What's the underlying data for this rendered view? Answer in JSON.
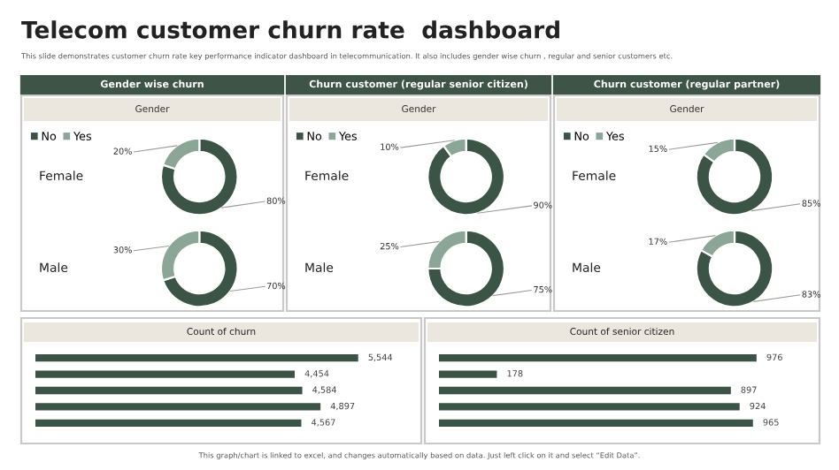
{
  "chart_data": [
    {
      "type": "donut",
      "title": "Gender wise churn",
      "subtitle": "Gender",
      "ylabel": "Female",
      "categories": [
        "No",
        "Yes"
      ],
      "values": [
        80,
        20
      ],
      "colors": [
        "#3b5446",
        "#8ba596"
      ],
      "value_labels": [
        "80%",
        "20%"
      ],
      "legend": "top left",
      "annotations": [
        "Telecom customer churn rate  dashboard",
        "This slide demonstrates customer churn rate key performance indicator dashboard in telecommunication. It also includes gender wise churn , regular and senior customers etc."
      ]
    },
    {
      "type": "donut",
      "title": "Churn customer (regular senior citizen)",
      "subtitle": "Gender",
      "ylabel": "Female",
      "categories": [
        "No",
        "Yes"
      ],
      "values": [
        90,
        10
      ],
      "colors": [
        "#3b5446",
        "#8ba596"
      ],
      "value_labels": [
        "90%",
        "10%"
      ],
      "legend": "top left"
    },
    {
      "type": "donut",
      "title": "Churn customer (regular partner)",
      "subtitle": "Gender",
      "ylabel": "Female",
      "categories": [
        "No",
        "Yes"
      ],
      "values": [
        85,
        15
      ],
      "colors": [
        "#3b5446",
        "#8ba596"
      ],
      "value_labels": [
        "85%",
        "15%"
      ],
      "legend": "top left"
    },
    {
      "type": "donut",
      "ylabel": "Male",
      "categories": [
        null,
        null
      ],
      "values": [
        70,
        30
      ],
      "colors": [
        "#3b5446",
        "#8ba596"
      ],
      "value_labels": [
        "70%",
        "30%"
      ]
    },
    {
      "type": "donut",
      "ylabel": "Male",
      "categories": [
        null,
        null
      ],
      "values": [
        75,
        25
      ],
      "colors": [
        "#3b5446",
        "#8ba596"
      ],
      "value_labels": [
        "75%",
        "25%"
      ]
    },
    {
      "type": "donut",
      "ylabel": "Male",
      "categories": [
        null,
        null
      ],
      "values": [
        83,
        17
      ],
      "colors": [
        "#3b5446",
        "#8ba596"
      ],
      "value_labels": [
        "83%",
        "17%"
      ]
    },
    {
      "type": "bar",
      "orientation": "horizontal",
      "title": "Count of churn",
      "categories": [
        null,
        null,
        null,
        null,
        null
      ],
      "values": [
        5544,
        4454,
        4584,
        4897,
        4567
      ],
      "value_labels": [
        "5,544",
        "4,454",
        "4,584",
        "4,897",
        "4,567"
      ],
      "color": "#3b5446"
    },
    {
      "type": "bar",
      "orientation": "horizontal",
      "title": "Count of senior citizen",
      "categories": [
        null,
        null,
        null,
        null,
        null
      ],
      "values": [
        976,
        178,
        897,
        924,
        965
      ],
      "value_labels": [
        "976",
        "178",
        "897",
        "924",
        "965"
      ],
      "color": "#3b5446",
      "annotations": [
        "This graph/chart is linked to excel, and changes automatically based on data. Just left click on it and select “Edit Data”."
      ]
    }
  ]
}
